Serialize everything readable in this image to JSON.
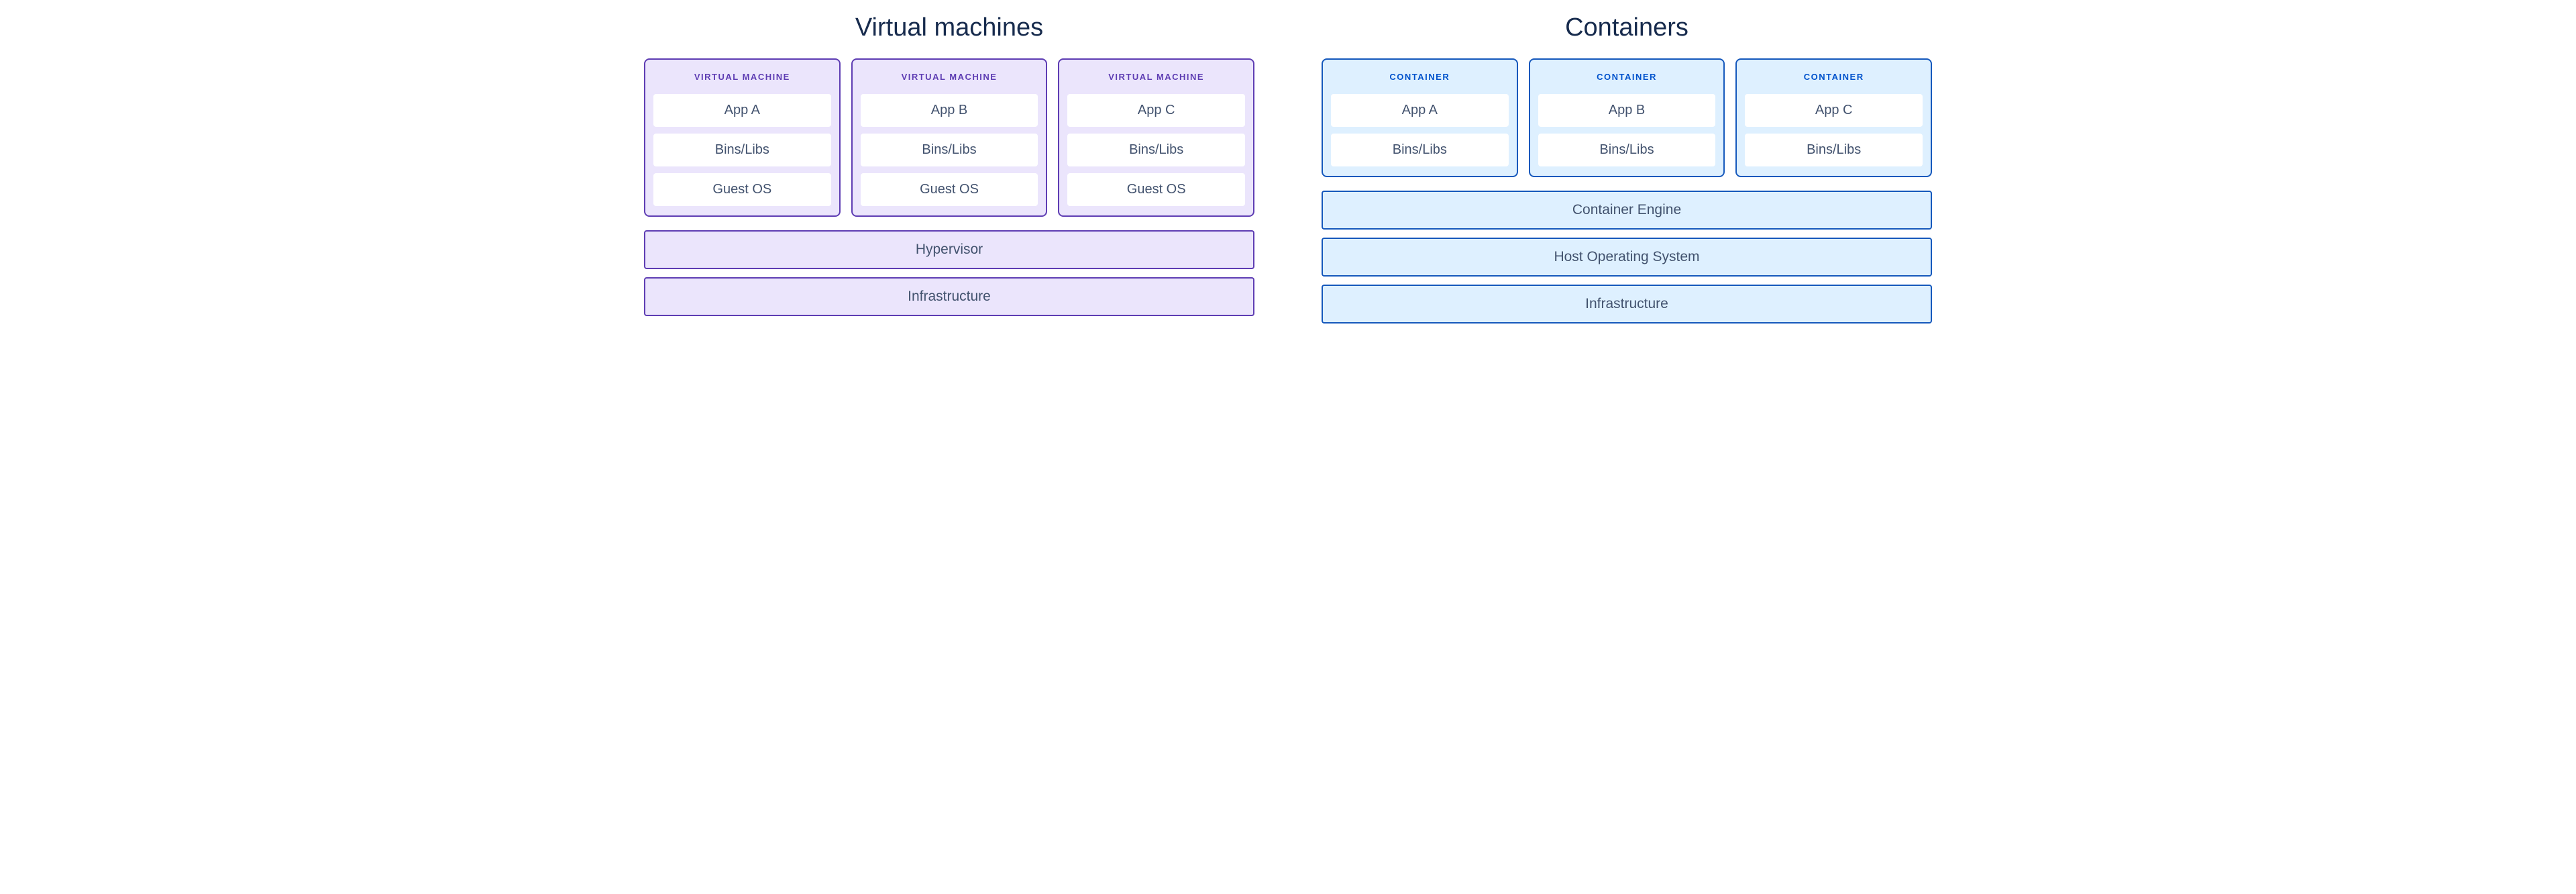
{
  "diagram": {
    "type": "infographic",
    "background_color": "#ffffff",
    "title_color": "#172b4d",
    "inner_text_color": "#42526e",
    "vm": {
      "title": "Virtual machines",
      "fill_color": "#ebe5fc",
      "border_color": "#5e3db3",
      "header_color": "#5e3db3",
      "inner_box_color": "#ffffff",
      "border_width": 2,
      "border_radius": 8,
      "units": [
        {
          "header": "VIRTUAL MACHINE",
          "layers": [
            "App A",
            "Bins/Libs",
            "Guest OS"
          ]
        },
        {
          "header": "VIRTUAL MACHINE",
          "layers": [
            "App B",
            "Bins/Libs",
            "Guest OS"
          ]
        },
        {
          "header": "VIRTUAL MACHINE",
          "layers": [
            "App C",
            "Bins/Libs",
            "Guest OS"
          ]
        }
      ],
      "base_layers": [
        "Hypervisor",
        "Infrastructure"
      ]
    },
    "containers": {
      "title": "Containers",
      "fill_color": "#def0ff",
      "border_color": "#1558bc",
      "header_color": "#0052cc",
      "inner_box_color": "#ffffff",
      "border_width": 2,
      "border_radius": 8,
      "units": [
        {
          "header": "CONTAINER",
          "layers": [
            "App A",
            "Bins/Libs"
          ]
        },
        {
          "header": "CONTAINER",
          "layers": [
            "App B",
            "Bins/Libs"
          ]
        },
        {
          "header": "CONTAINER",
          "layers": [
            "App C",
            "Bins/Libs"
          ]
        }
      ],
      "base_layers": [
        "Container Engine",
        "Host Operating System",
        "Infrastructure"
      ]
    },
    "typography": {
      "title_fontsize": 38,
      "header_fontsize": 13,
      "layer_fontsize": 20,
      "base_fontsize": 21
    }
  }
}
